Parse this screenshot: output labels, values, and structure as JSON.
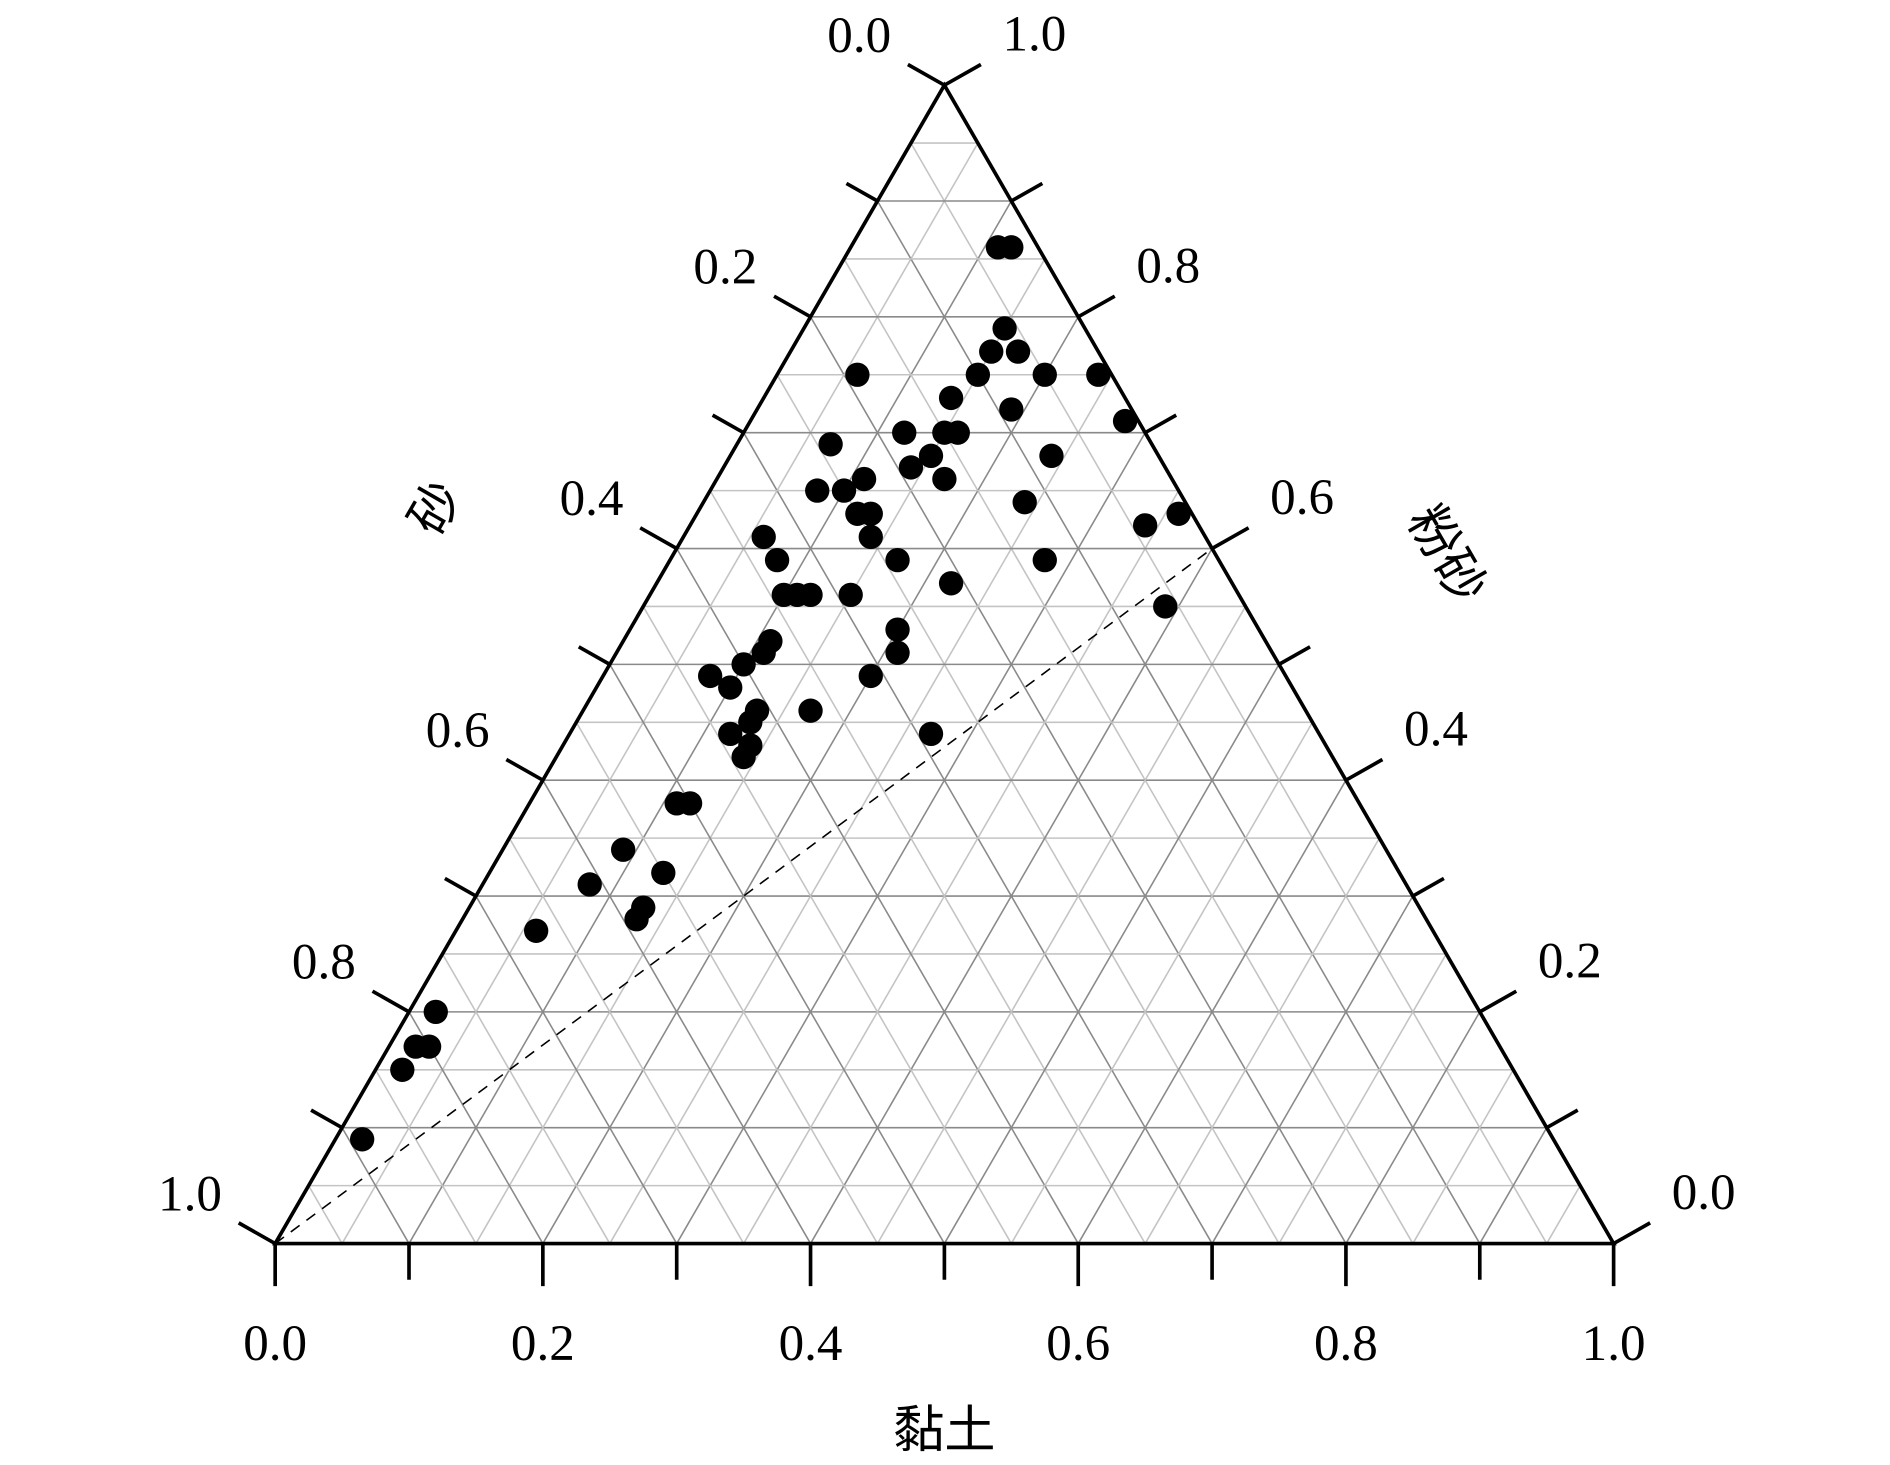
{
  "chart_data": {
    "type": "ternary",
    "clay_label": "黏土",
    "sand_label": "砂",
    "silt_label": "粉砂",
    "clay_ticks": [
      {
        "value": 0,
        "label": "0.0"
      },
      0.2,
      0.4,
      0.6,
      0.8,
      {
        "value": 1,
        "label": "1.0"
      }
    ],
    "sand_ticks": [
      {
        "value": 0,
        "label": "0.0"
      },
      0.2,
      0.4,
      0.6,
      0.8,
      {
        "value": 1,
        "label": "1.0"
      }
    ],
    "silt_ticks": [
      {
        "value": 0,
        "label": "0.0"
      },
      0.2,
      0.4,
      0.6,
      0.8,
      {
        "value": 1,
        "label": "1.0"
      }
    ],
    "minor_ticks": [
      0.1,
      0.3,
      0.5,
      0.7,
      0.9
    ],
    "grid": [
      0.05,
      0.1,
      0.15,
      0.2,
      0.25,
      0.3,
      0.35,
      0.4,
      0.45,
      0.5,
      0.55,
      0.6,
      0.65,
      0.7,
      0.75,
      0.8,
      0.85,
      0.9,
      0.95
    ],
    "color": "#000000",
    "reference_line": {
      "sand": [
        1,
        0
      ],
      "silt": [
        0,
        0.6
      ],
      "clay": [
        0,
        0.4
      ]
    },
    "silt": [
      0.86,
      0.86,
      0.79,
      0.77,
      0.77,
      0.75,
      0.75,
      0.75,
      0.75,
      0.73,
      0.72,
      0.71,
      0.7,
      0.7,
      0.7,
      0.69,
      0.68,
      0.68,
      0.67,
      0.66,
      0.66,
      0.65,
      0.65,
      0.63,
      0.63,
      0.64,
      0.62,
      0.63,
      0.61,
      0.61,
      0.59,
      0.59,
      0.59,
      0.56,
      0.56,
      0.56,
      0.56,
      0.57,
      0.55,
      0.53,
      0.52,
      0.51,
      0.5,
      0.51,
      0.49,
      0.49,
      0.48,
      0.46,
      0.46,
      0.45,
      0.44,
      0.44,
      0.43,
      0.42,
      0.38,
      0.38,
      0.34,
      0.32,
      0.31,
      0.29,
      0.28,
      0.27,
      0.2,
      0.17,
      0.17,
      0.15,
      0.09
    ],
    "clay": [
      0.11,
      0.12,
      0.15,
      0.15,
      0.17,
      0.15,
      0.2,
      0.24,
      0.06,
      0.14,
      0.19,
      0.28,
      0.12,
      0.15,
      0.16,
      0.07,
      0.24,
      0.15,
      0.14,
      0.17,
      0.11,
      0.08,
      0.1,
      0.12,
      0.13,
      0.24,
      0.34,
      0.36,
      0.06,
      0.14,
      0.08,
      0.17,
      0.28,
      0.1,
      0.11,
      0.12,
      0.15,
      0.22,
      0.39,
      0.2,
      0.11,
      0.11,
      0.1,
      0.21,
      0.08,
      0.2,
      0.1,
      0.17,
      0.13,
      0.13,
      0.12,
      0.27,
      0.14,
      0.14,
      0.11,
      0.12,
      0.09,
      0.13,
      0.08,
      0.13,
      0.13,
      0.06,
      0.02,
      0.03,
      0.02,
      0.02,
      0.02
    ],
    "sand": [
      0.03,
      0.02,
      0.06,
      0.08,
      0.06,
      0.1,
      0.05,
      0.01,
      0.19,
      0.13,
      0.09,
      0.01,
      0.18,
      0.15,
      0.14,
      0.24,
      0.08,
      0.17,
      0.19,
      0.17,
      0.23,
      0.27,
      0.25,
      0.25,
      0.24,
      0.12,
      0.04,
      0.01,
      0.33,
      0.25,
      0.33,
      0.24,
      0.13,
      0.34,
      0.33,
      0.32,
      0.29,
      0.21,
      0.06,
      0.27,
      0.37,
      0.38,
      0.4,
      0.28,
      0.43,
      0.31,
      0.42,
      0.37,
      0.41,
      0.42,
      0.44,
      0.29,
      0.43,
      0.44,
      0.51,
      0.5,
      0.57,
      0.55,
      0.61,
      0.58,
      0.59,
      0.67,
      0.78,
      0.8,
      0.81,
      0.83,
      0.89
    ]
  }
}
